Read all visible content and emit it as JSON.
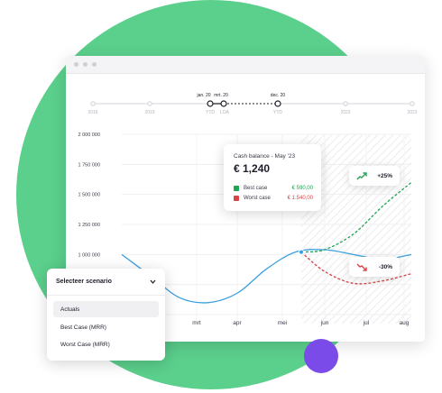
{
  "colors": {
    "background_circle": "#5bcf8c",
    "accent_dot": "#7a4be8",
    "actual_line": "#3aa0e0",
    "best_case": "#21a453",
    "worst_case": "#d64545"
  },
  "timeline": {
    "ticks": [
      "2016",
      "2019",
      "YTD",
      "LOA",
      "YTD",
      "2022",
      "2023"
    ],
    "markers": [
      "jan. 20",
      "mrt. 20",
      "dec. 20"
    ]
  },
  "chart_data": {
    "type": "line",
    "y_ticks": [
      "2 000 000",
      "1 750 000",
      "1 500 000",
      "1 250 000",
      "1 000 000",
      "750 000",
      "500 000"
    ],
    "ylim": [
      500000,
      2000000
    ],
    "x_categories": [
      "mrt",
      "apr",
      "mei",
      "jun",
      "jul",
      "aug"
    ],
    "series": [
      {
        "name": "Actual",
        "x": [
          0,
          1,
          2,
          3,
          4,
          5,
          6,
          7,
          8,
          9,
          10
        ],
        "values": [
          1000000,
          820000,
          640000,
          600000,
          680000,
          880000,
          1020000,
          1040000,
          1000000,
          960000,
          1000000
        ]
      },
      {
        "name": "Best case",
        "x": [
          6.2,
          7,
          8,
          9,
          10
        ],
        "values": [
          1020000,
          1040000,
          1170000,
          1400000,
          1600000
        ]
      },
      {
        "name": "Worst case",
        "x": [
          6.2,
          7,
          8,
          9,
          10
        ],
        "values": [
          1020000,
          860000,
          760000,
          780000,
          840000
        ]
      }
    ],
    "forecast_start_label": "mei"
  },
  "tooltip": {
    "title": "Cash balance - May '23",
    "value": "€ 1,240",
    "best_label": "Best case",
    "best_value": "€ 590,00",
    "worst_label": "Worst case",
    "worst_value": "€ 1.540,00"
  },
  "badges": {
    "up": "+25%",
    "down": "-30%",
    "up_icon": "trend-up-icon",
    "down_icon": "trend-down-icon"
  },
  "dropdown": {
    "title": "Selecteer scenario",
    "options": [
      "Actuals",
      "Best Case (MRR)",
      "Worst Case (MRR)"
    ],
    "selected": "Actuals"
  }
}
